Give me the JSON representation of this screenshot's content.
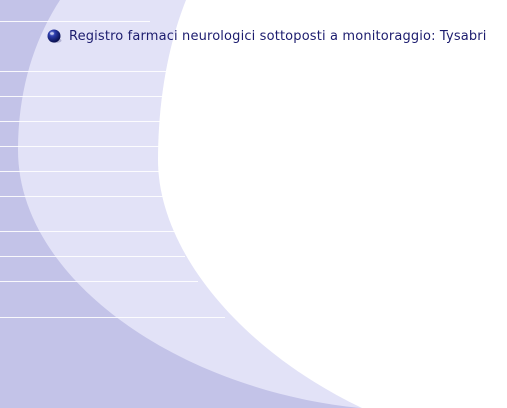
{
  "page": {
    "title": "Registro farmaci neurologici sottoposti a monitoraggio: Tysabri"
  },
  "colors": {
    "outer_band": "#c3c3e8",
    "inner_band": "#e2e2f7",
    "content_bg": "#ffffff",
    "title_text": "#1c1c6e",
    "bullet": "#0f1a6b"
  },
  "icons": {
    "bullet": "sphere-bullet-icon"
  }
}
